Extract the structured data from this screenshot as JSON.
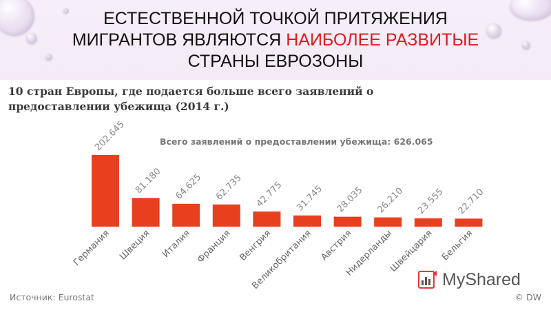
{
  "slide": {
    "title_line1": "Естественной точкой притяжения",
    "title_line2_before": "мигрантов являются ",
    "title_line2_accent": "наиболее развитые",
    "title_line3": "страны еврозоны",
    "accent_color": "#e01a1a"
  },
  "chart_data": {
    "type": "bar",
    "title_line1": "10 стран Европы, где подается больше всего заявлений о",
    "title_line2": "предоставлении убежища (2014 г.)",
    "annotation": "Всего заявлений о предоставлении убежища: 626.065",
    "categories": [
      "Германия",
      "Швеция",
      "Италия",
      "Франция",
      "Венгрия",
      "Великобритания",
      "Австрия",
      "Нидерланды",
      "Швейцария",
      "Бельгия"
    ],
    "values": [
      202645,
      81180,
      64625,
      62735,
      42775,
      31745,
      28035,
      26210,
      23555,
      22710
    ],
    "value_labels": [
      "202.645",
      "81.180",
      "64.625",
      "62.735",
      "42.775",
      "31.745",
      "28.035",
      "26.210",
      "23.555",
      "22.710"
    ],
    "ylim": [
      0,
      202645
    ],
    "bar_color": "#e8401f",
    "grid": false,
    "source": "Источник: Eurostat",
    "credit": "© DW"
  },
  "watermark": {
    "text": "MyShared",
    "icon": "myshared-logo-icon"
  }
}
